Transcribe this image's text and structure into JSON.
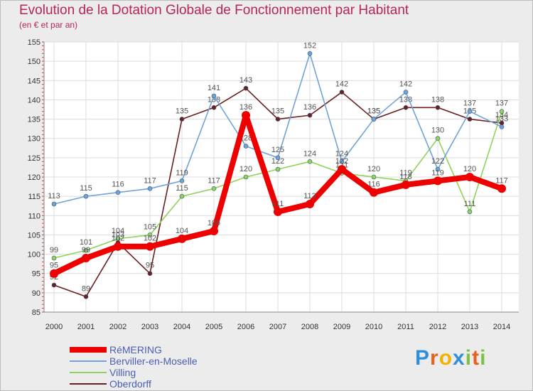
{
  "header": {
    "title": "Evolution de la Dotation Globale de Fonctionnement par Habitant",
    "subtitle": "(en € et par an)"
  },
  "logo": {
    "text": "Proxiti",
    "letters": [
      "P",
      "r",
      "o",
      "x",
      "i",
      "t",
      "i"
    ],
    "colors": [
      "#2f8fd8",
      "#e8601c",
      "#f0b400",
      "#2f8fd8",
      "#7cc242",
      "#e8601c",
      "#7cc242"
    ]
  },
  "chart_data": {
    "type": "line",
    "title": "Evolution de la Dotation Globale de Fonctionnement par Habitant",
    "subtitle": "(en € et par an)",
    "xlabel": "",
    "ylabel": "",
    "ylim": [
      85,
      155
    ],
    "yticks": [
      85,
      90,
      95,
      100,
      105,
      110,
      115,
      120,
      125,
      130,
      135,
      140,
      145,
      150,
      155
    ],
    "categories": [
      "2000",
      "2001",
      "2002",
      "2003",
      "2004",
      "2005",
      "2006",
      "2007",
      "2008",
      "2009",
      "2010",
      "2011",
      "2012",
      "2013",
      "2014"
    ],
    "grid": true,
    "legend_position": "bottom-left",
    "series": [
      {
        "name": "Oberdorff",
        "color": "#6b1f1f",
        "emphasis": false,
        "values": [
          92,
          89,
          103,
          95,
          135,
          138,
          143,
          135,
          136,
          142,
          135,
          138,
          138,
          135,
          134
        ]
      },
      {
        "name": "Villing",
        "color": "#8fd35a",
        "emphasis": false,
        "values": [
          99,
          101,
          104,
          105,
          115,
          117,
          120,
          122,
          124,
          121,
          120,
          119,
          130,
          111,
          137
        ]
      },
      {
        "name": "Berviller-en-Moselle",
        "color": "#6fa3d8",
        "emphasis": false,
        "values": [
          113,
          115,
          116,
          117,
          119,
          141,
          128,
          125,
          152,
          124,
          135,
          142,
          122,
          137,
          133
        ]
      },
      {
        "name": "RéMERING",
        "color": "#ee0000",
        "emphasis": true,
        "values": [
          95,
          99,
          102,
          102,
          104,
          106,
          136,
          111,
          113,
          122,
          116,
          118,
          119,
          120,
          117
        ]
      }
    ],
    "legend_order": [
      "RéMERING",
      "Berviller-en-Moselle",
      "Villing",
      "Oberdorff"
    ]
  }
}
